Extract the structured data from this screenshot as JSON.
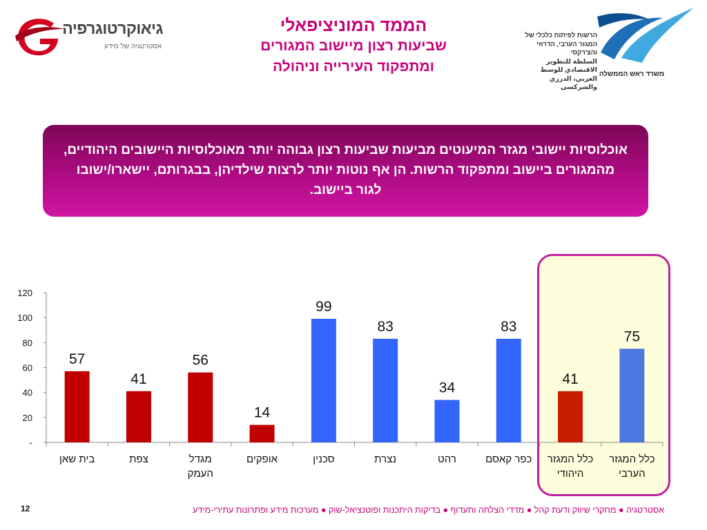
{
  "header": {
    "title_line1": "הממד המוניציפאלי",
    "title_line2": "שביעות רצון מיישוב המגורים",
    "title_line3": "ומתפקוד העירייה וניהולה"
  },
  "logo_left": {
    "name": "גיאוקרטוגרפיה",
    "tagline": "אסטרטגיה של מידע",
    "icon": "g-swoosh-logo"
  },
  "logo_right": {
    "org_text": "הרשות לפיתוח כלכלי של המגזר הערבי, הדרוזי והצ'רקסי",
    "org_text_arabic": "السلطة للتطوير الاقتصادي للوسط العربي، الدرزي والشركسي",
    "ministry": "משרד ראש הממשלה",
    "icon": "blue-wave-logo"
  },
  "callout": {
    "text": "אוכלוסיות יישובי מגזר המיעוטים מביעות שביעות רצון גבוהה יותר מאוכלוסיות היישובים היהודיים, מהמגורים ביישוב ומתפקוד הרשות. הן אף נוטות יותר לרצות שילדיהן, בבגרותם, יישארו/ישובו לגור ביישוב."
  },
  "colors": {
    "red_bar": "#c00000",
    "blue_bar": "#3366ff",
    "jewish_total_bar": "#c81e00",
    "arab_total_bar": "#4a78e0",
    "accent": "#c8007a",
    "highlight_fill": "#fefedd"
  },
  "chart_data": {
    "type": "bar",
    "categories": [
      "בית שאן",
      "צפת",
      "מגדל העמק",
      "אופקים",
      "סכנין",
      "נצרת",
      "רהט",
      "כפר קאסם",
      "כלל המגזר היהודי",
      "כלל המגזר הערבי"
    ],
    "category_lines": [
      [
        "בית שאן"
      ],
      [
        "צפת"
      ],
      [
        "מגדל",
        "העמק"
      ],
      [
        "אופקים"
      ],
      [
        "סכנין"
      ],
      [
        "נצרת"
      ],
      [
        "רהט"
      ],
      [
        "כפר קאסם"
      ],
      [
        "כלל המגזר",
        "היהודי"
      ],
      [
        "כלל המגזר",
        "הערבי"
      ]
    ],
    "values": [
      57,
      41,
      56,
      14,
      99,
      83,
      34,
      83,
      41,
      75
    ],
    "bar_colors": [
      "#c00000",
      "#c00000",
      "#c00000",
      "#c00000",
      "#3366ff",
      "#3366ff",
      "#3366ff",
      "#3366ff",
      "#c81e00",
      "#4a78e0"
    ],
    "ylim": [
      0,
      120
    ],
    "yticks": [
      0,
      20,
      40,
      60,
      80,
      100,
      120
    ],
    "ytick_labels": [
      "-",
      "20",
      "40",
      "60",
      "80",
      "100",
      "120"
    ],
    "title": "",
    "xlabel": "",
    "ylabel": "",
    "grid": false,
    "legend": "none"
  },
  "footer": {
    "text": "אסטרטגיה ● מחקרי שיווק ודעת קהל ● מדדי הצלחה ותעדוף ● בדיקות היתכנות ופוטנציאל-שוק ● מערכות מידע ופתרונות עתירי-מידע",
    "page_number": "12"
  }
}
